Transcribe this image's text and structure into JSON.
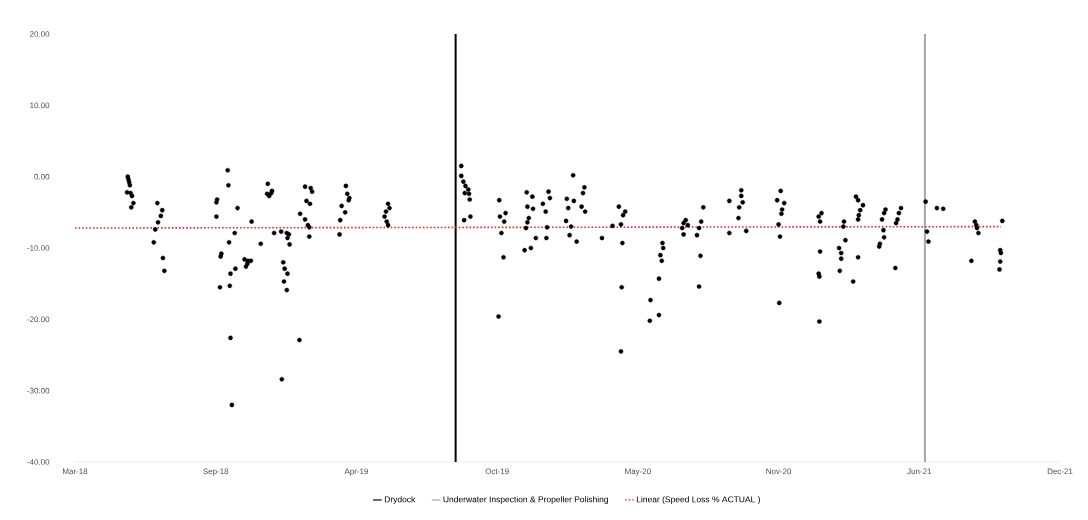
{
  "chart_data": {
    "type": "scatter",
    "xlim": [
      "2018-03-01",
      "2021-12-30"
    ],
    "xticks": [
      {
        "value": "2018-03-01",
        "label": "Mar-18"
      },
      {
        "value": "2018-09-17",
        "label": "Sep-18"
      },
      {
        "value": "2019-04-05",
        "label": "Apr-19"
      },
      {
        "value": "2019-10-22",
        "label": "Oct-19"
      },
      {
        "value": "2020-05-09",
        "label": "May-20"
      },
      {
        "value": "2020-11-25",
        "label": "Nov-20"
      },
      {
        "value": "2021-06-13",
        "label": "Jun-21"
      },
      {
        "value": "2021-12-30",
        "label": "Dec-21"
      }
    ],
    "ylim": [
      -40,
      20
    ],
    "yticks": [
      {
        "value": -40,
        "label": "-40.00"
      },
      {
        "value": -30,
        "label": "-30.00"
      },
      {
        "value": -20,
        "label": "-20.00"
      },
      {
        "value": -10,
        "label": "-10.00"
      },
      {
        "value": 0,
        "label": "0.00"
      },
      {
        "value": 10,
        "label": "10.00"
      },
      {
        "value": 20,
        "label": "20.00"
      }
    ],
    "legend": "bottom",
    "ref_lines": [
      {
        "axis": "x",
        "value": "2019-08-24",
        "label": "Drydock",
        "color": "#000000"
      },
      {
        "axis": "x",
        "value": "2021-06-21",
        "label": "Underwater Inspection & Propeller Polishing",
        "color": "#a6a6a6"
      }
    ],
    "series": [
      {
        "marker": "circle",
        "color": "#000000",
        "x": [
          "2018-05-15",
          "2018-05-16",
          "2018-05-17",
          "2018-05-18",
          "2018-05-14",
          "2018-05-19",
          "2018-05-21",
          "2018-05-23",
          "2018-05-20",
          "2018-06-26",
          "2018-07-03",
          "2018-07-01",
          "2018-06-27",
          "2018-06-23",
          "2018-06-21",
          "2018-07-04",
          "2018-07-06",
          "2018-09-18",
          "2018-09-19",
          "2018-09-18",
          "2018-09-25",
          "2018-09-24",
          "2018-09-23",
          "2018-10-04",
          "2018-10-05",
          "2018-10-06",
          "2018-10-07",
          "2018-10-08",
          "2018-10-10",
          "2018-10-08",
          "2018-10-14",
          "2018-10-15",
          "2018-10-18",
          "2018-10-28",
          "2018-10-30",
          "2018-11-02",
          "2018-11-06",
          "2018-11-01",
          "2018-11-07",
          "2018-11-20",
          "2018-11-30",
          "2018-11-29",
          "2018-12-02",
          "2018-12-06",
          "2018-12-05",
          "2018-12-09",
          "2018-12-20",
          "2018-12-19",
          "2018-12-27",
          "2018-12-30",
          "2018-12-28",
          "2018-12-31",
          "2018-12-22",
          "2018-12-24",
          "2018-12-28",
          "2018-12-23",
          "2018-12-27",
          "2019-01-14",
          "2019-01-15",
          "2019-01-22",
          "2019-01-30",
          "2019-02-01",
          "2019-01-24",
          "2019-01-29",
          "2019-01-22",
          "2019-01-26",
          "2019-01-28",
          "2019-01-28",
          "2019-03-21",
          "2019-03-23",
          "2019-03-26",
          "2019-03-25",
          "2019-03-15",
          "2019-03-20",
          "2019-03-13",
          "2019-03-12",
          "2019-05-20",
          "2019-05-22",
          "2019-05-17",
          "2019-05-15",
          "2019-05-18",
          "2019-05-20",
          "2019-09-01",
          "2019-09-01",
          "2019-09-04",
          "2019-09-07",
          "2019-09-11",
          "2019-09-06",
          "2019-09-12",
          "2019-09-13",
          "2019-09-05",
          "2019-09-14",
          "2019-10-25",
          "2019-10-26",
          "2019-11-03",
          "2019-11-01",
          "2019-10-28",
          "2019-10-31",
          "2019-10-24",
          "2019-12-03",
          "2019-12-11",
          "2019-12-04",
          "2019-12-12",
          "2019-12-06",
          "2019-12-04",
          "2019-12-02",
          "2019-12-16",
          "2019-11-30",
          "2019-12-09",
          "2020-01-03",
          "2020-01-05",
          "2019-12-26",
          "2019-12-30",
          "2020-01-01",
          "2019-12-31",
          "2020-02-07",
          "2020-01-29",
          "2020-02-08",
          "2020-01-31",
          "2020-01-28",
          "2020-02-04",
          "2020-02-02",
          "2020-02-12",
          "2020-02-23",
          "2020-02-21",
          "2020-02-19",
          "2020-02-24",
          "2020-03-19",
          "2020-04-12",
          "2020-04-21",
          "2020-04-18",
          "2020-04-03",
          "2020-04-15",
          "2020-04-17",
          "2020-04-16",
          "2020-04-15",
          "2020-06-13",
          "2020-06-14",
          "2020-06-10",
          "2020-06-12",
          "2020-06-08",
          "2020-05-27",
          "2020-05-26",
          "2020-06-08",
          "2020-07-16",
          "2020-07-13",
          "2020-07-19",
          "2020-07-13",
          "2020-07-11",
          "2020-08-10",
          "2020-08-07",
          "2020-08-04",
          "2020-08-01",
          "2020-08-06",
          "2020-08-04",
          "2020-09-16",
          "2020-10-03",
          "2020-10-03",
          "2020-10-05",
          "2020-09-30",
          "2020-09-29",
          "2020-09-16",
          "2020-10-10",
          "2020-11-28",
          "2020-11-23",
          "2020-12-03",
          "2020-11-30",
          "2020-11-29",
          "2020-11-25",
          "2020-11-27",
          "2020-11-26",
          "2021-01-25",
          "2021-01-21",
          "2021-01-23",
          "2021-01-23",
          "2021-01-21",
          "2021-01-22",
          "2021-01-22",
          "2021-02-26",
          "2021-02-25",
          "2021-02-28",
          "2021-02-19",
          "2021-02-22",
          "2021-02-22",
          "2021-02-20",
          "2021-03-11",
          "2021-03-18",
          "2021-03-15",
          "2021-03-18",
          "2021-03-25",
          "2021-03-21",
          "2021-03-19",
          "2021-03-18",
          "2021-04-26",
          "2021-04-24",
          "2021-04-21",
          "2021-04-23",
          "2021-04-24",
          "2021-04-18",
          "2021-04-17",
          "2021-05-18",
          "2021-05-15",
          "2021-05-13",
          "2021-05-11",
          "2021-05-10",
          "2021-06-22",
          "2021-06-24",
          "2021-06-26",
          "2021-07-08",
          "2021-07-17",
          "2021-08-31",
          "2021-09-02",
          "2021-09-03",
          "2021-09-05",
          "2021-08-26",
          "2021-10-09",
          "2021-10-06",
          "2021-10-07",
          "2021-10-06",
          "2021-10-05"
        ],
        "values": [
          0.0,
          -0.4,
          -0.8,
          -1.2,
          -2.2,
          -2.3,
          -2.7,
          -3.7,
          -4.3,
          -3.7,
          -4.7,
          -5.5,
          -6.4,
          -7.4,
          -9.2,
          -11.4,
          -13.2,
          -3.6,
          -3.2,
          -5.6,
          -10.8,
          -11.2,
          -15.5,
          0.9,
          -1.2,
          -9.2,
          -15.3,
          -22.6,
          -32.0,
          -13.6,
          -7.9,
          -12.9,
          -4.4,
          -11.6,
          -12.6,
          -11.8,
          -11.8,
          -12.2,
          -6.3,
          -9.4,
          -1.0,
          -2.4,
          -2.7,
          -2.0,
          -2.3,
          -7.9,
          -28.4,
          -7.7,
          -7.9,
          -8.1,
          -8.6,
          -9.5,
          -12.0,
          -12.9,
          -13.6,
          -14.7,
          -15.9,
          -22.9,
          -5.2,
          -1.4,
          -1.6,
          -2.1,
          -3.4,
          -3.8,
          -6.0,
          -6.8,
          -7.1,
          -8.4,
          -1.3,
          -2.4,
          -3.0,
          -3.3,
          -4.1,
          -5.0,
          -6.1,
          -8.1,
          -3.8,
          -4.4,
          -4.9,
          -5.6,
          -6.3,
          -6.8,
          1.5,
          0.1,
          -0.7,
          -1.3,
          -1.8,
          -2.3,
          -2.4,
          -3.2,
          -6.1,
          -5.6,
          -3.3,
          -5.6,
          -5.1,
          -6.3,
          -7.9,
          -11.3,
          -19.6,
          -2.2,
          -2.8,
          -4.2,
          -4.5,
          -5.8,
          -6.4,
          -7.2,
          -8.6,
          -10.3,
          -10.0,
          -2.1,
          -3.0,
          -3.8,
          -4.9,
          -7.1,
          -8.6,
          0.2,
          -3.1,
          -3.4,
          -4.4,
          -6.2,
          -7.0,
          -8.2,
          -9.1,
          -1.5,
          -2.3,
          -4.2,
          -4.9,
          -8.6,
          -4.2,
          -4.9,
          -5.4,
          -6.9,
          -6.7,
          -9.3,
          -15.5,
          -24.5,
          -9.3,
          -10.0,
          -11.0,
          -11.8,
          -14.3,
          -17.3,
          -20.2,
          -19.4,
          -6.1,
          -6.5,
          -6.8,
          -8.1,
          -7.2,
          -4.3,
          -6.3,
          -7.2,
          -8.2,
          -11.1,
          -15.4,
          -3.4,
          -1.9,
          -2.7,
          -3.6,
          -4.3,
          -5.8,
          -7.9,
          -7.6,
          -2.0,
          -3.3,
          -3.7,
          -4.6,
          -5.2,
          -6.7,
          -8.4,
          -17.7,
          -5.1,
          -5.6,
          -6.3,
          -10.5,
          -13.6,
          -14.0,
          -20.3,
          -6.3,
          -7.0,
          -8.9,
          -10.0,
          -10.7,
          -11.5,
          -13.2,
          -14.7,
          -11.3,
          -2.8,
          -3.3,
          -4.0,
          -4.7,
          -5.4,
          -6.0,
          -4.6,
          -5.1,
          -6.0,
          -7.5,
          -8.5,
          -9.4,
          -9.8,
          -4.4,
          -5.1,
          -6.0,
          -6.5,
          -12.8,
          -3.5,
          -7.7,
          -9.1,
          -4.4,
          -4.5,
          -6.3,
          -6.8,
          -7.2,
          -7.9,
          -11.8,
          -6.2,
          -10.3,
          -10.7,
          -11.9,
          -13.0
        ]
      },
      {
        "type": "line",
        "name": "Linear (Speed Loss % ACTUAL )",
        "color": "#e8262b",
        "line_style": "dotted",
        "marker": "none",
        "x": [
          "2018-03-01",
          "2021-10-07"
        ],
        "values": [
          -7.2,
          -7.0
        ]
      }
    ]
  }
}
